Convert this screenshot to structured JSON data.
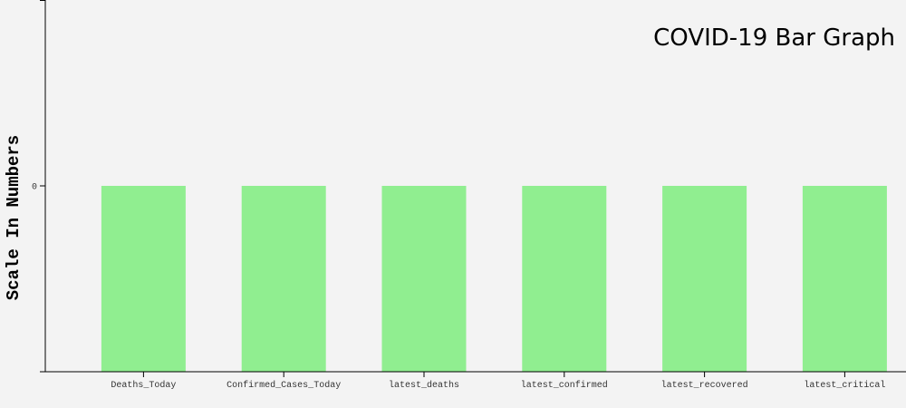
{
  "chart_data": {
    "type": "bar",
    "title": "COVID-19 Bar Graph",
    "xlabel": "",
    "ylabel": "Scale In Numbers",
    "categories": [
      "Deaths_Today",
      "Confirmed_Cases_Today",
      "latest_deaths",
      "latest_confirmed",
      "latest_recovered",
      "latest_critical"
    ],
    "values": [
      0,
      0,
      0,
      0,
      0,
      0
    ],
    "y_ticks": [
      "0"
    ],
    "grid": false,
    "bar_color": "#90ee90",
    "axis_color": "#000000",
    "background": "#f3f3f3"
  }
}
